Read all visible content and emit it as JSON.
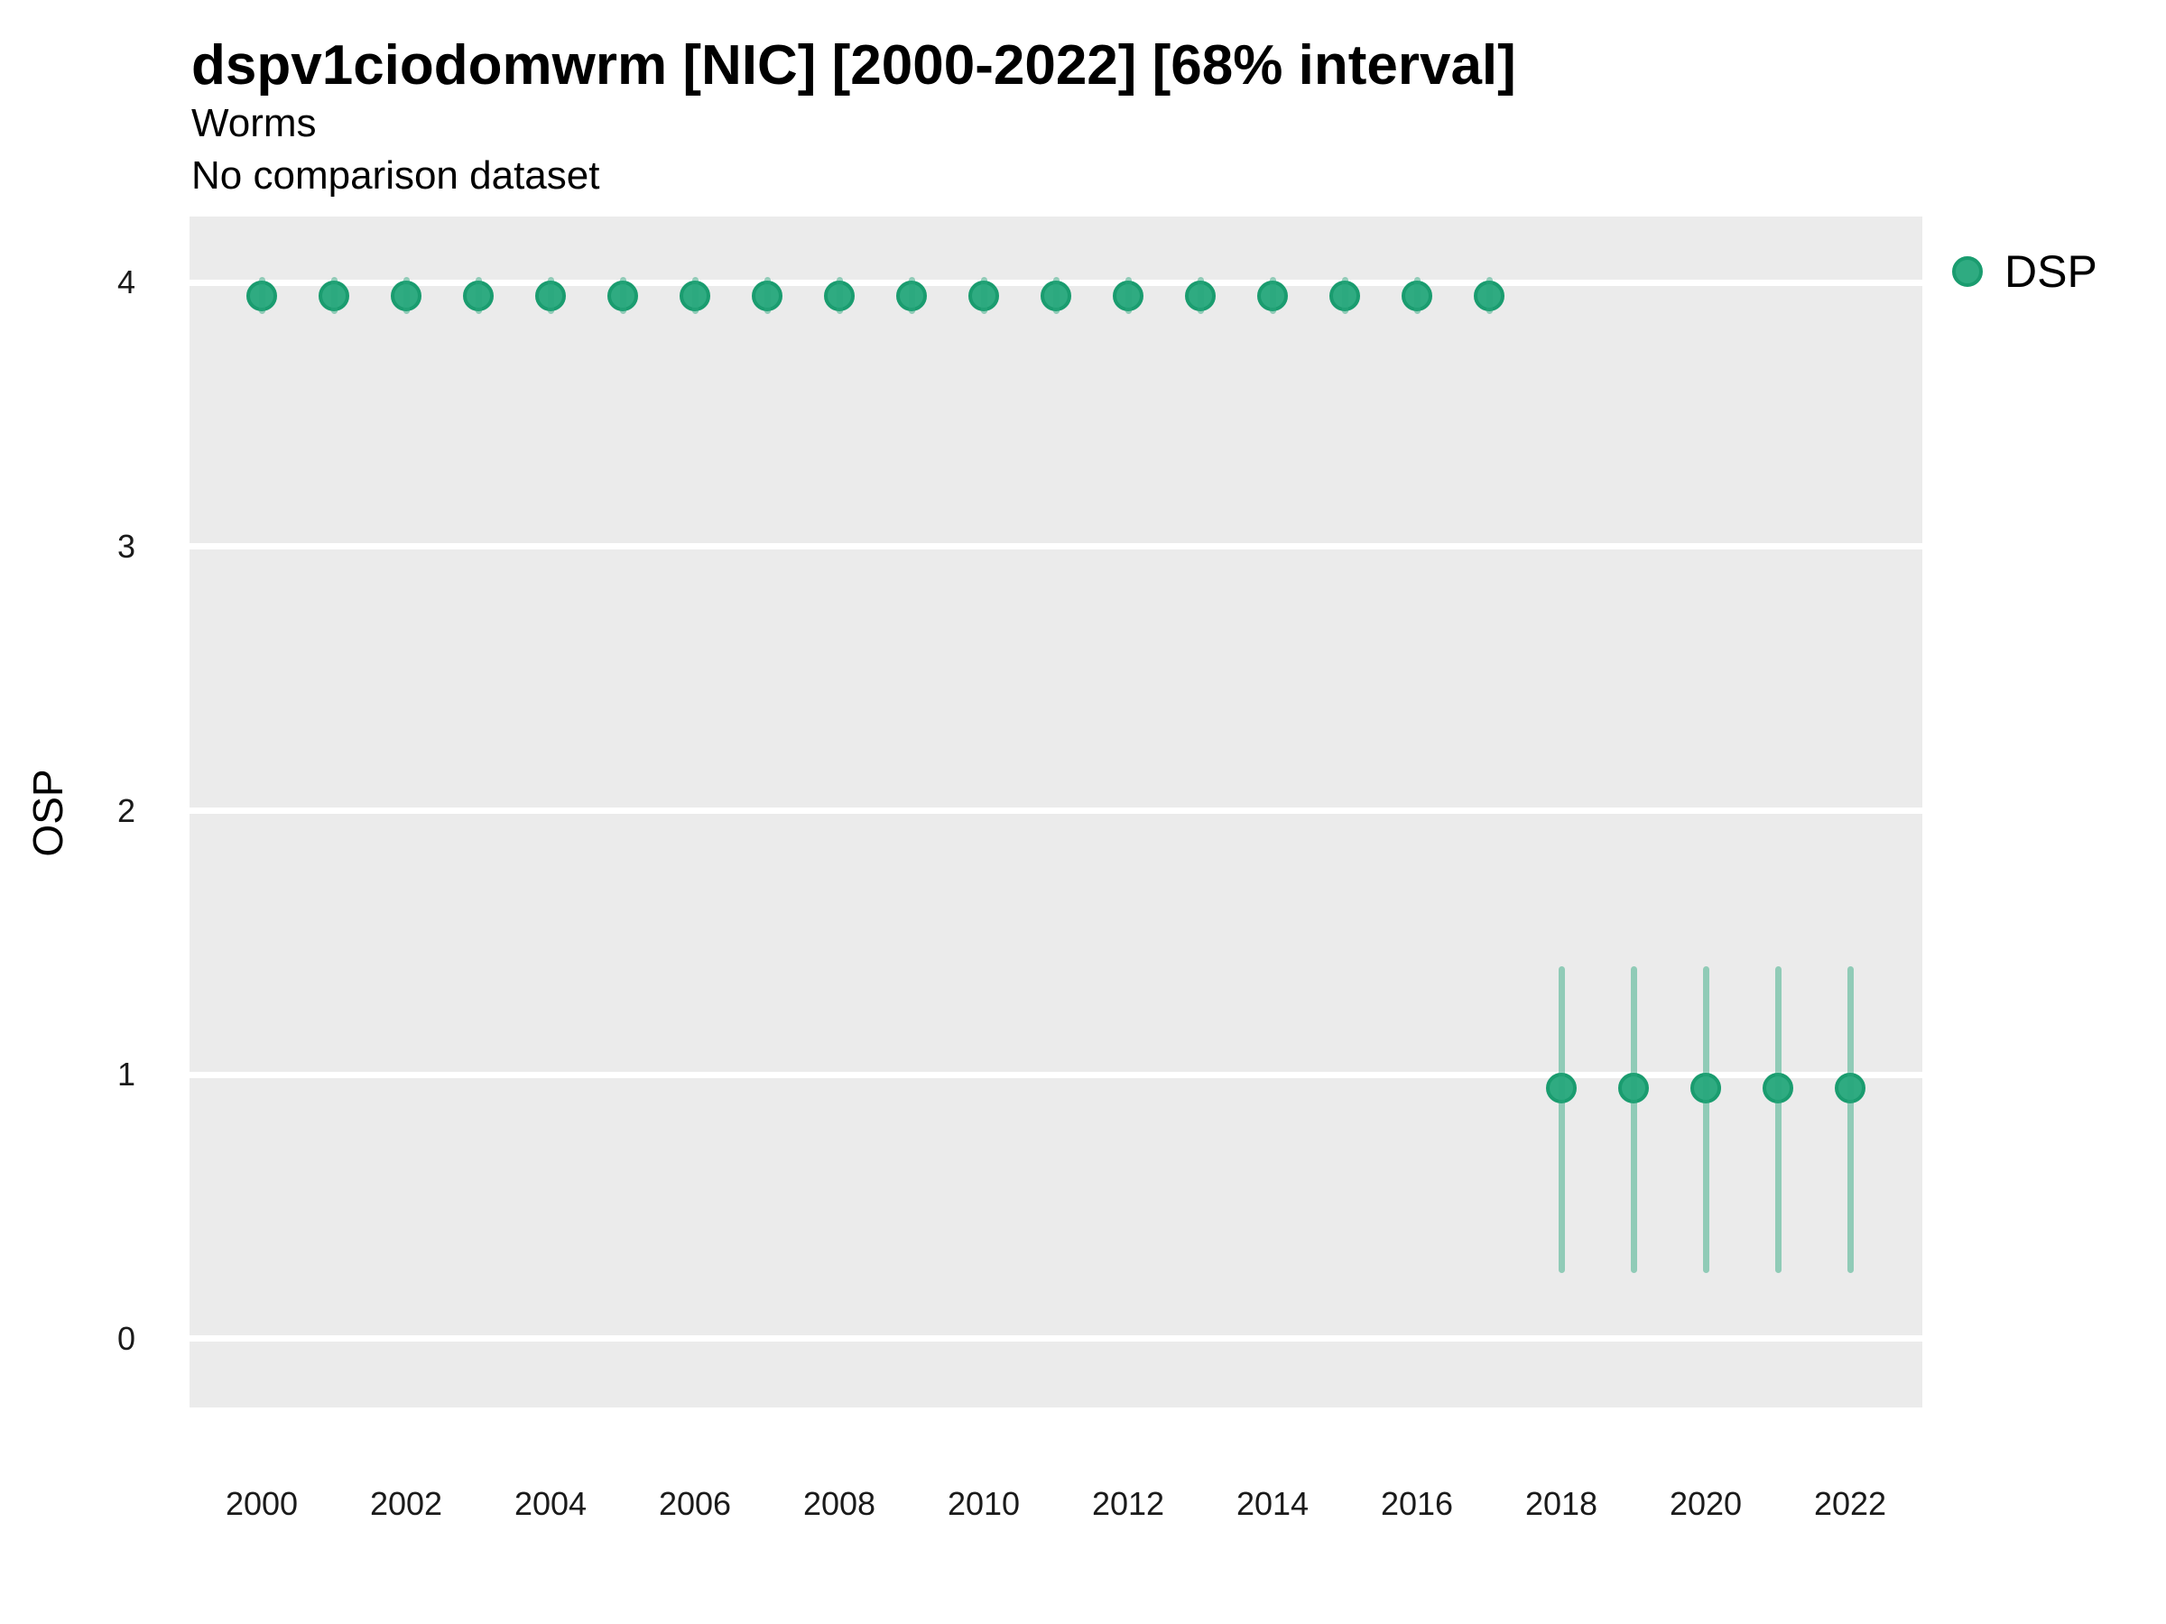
{
  "header": {
    "title": "dspv1ciodomwrm [NIC] [2000-2022] [68% interval]",
    "subtitle": "Worms",
    "note": "No comparison dataset"
  },
  "legend": {
    "label": "DSP",
    "position": "right-top"
  },
  "colors": {
    "point_fill": "#2fab81",
    "point_border": "#1a9c6f",
    "interval": "rgba(42,168,126,0.47)",
    "panel_bg": "#ebebeb",
    "gridline": "#ffffff",
    "tick_text": "#1a1a1a"
  },
  "chart_data": {
    "type": "scatter",
    "title": "dspv1ciodomwrm [NIC] [2000-2022] [68% interval]",
    "subtitle": "Worms",
    "note": "No comparison dataset",
    "xlabel": "",
    "ylabel": "OSP",
    "interval_level": "68%",
    "xlim": [
      1999,
      2023
    ],
    "ylim": [
      -0.26,
      4.25
    ],
    "x_tick_labels": [
      2000,
      2002,
      2004,
      2006,
      2008,
      2010,
      2012,
      2014,
      2016,
      2018,
      2020,
      2022
    ],
    "y_tick_labels": [
      0,
      1,
      2,
      3,
      4
    ],
    "grid": "major-horizontal-white-on-gray",
    "legend_position": "right-top",
    "series": [
      {
        "name": "DSP",
        "points": [
          {
            "year": 2000,
            "osp": 3.95,
            "lo": 3.88,
            "hi": 4.02
          },
          {
            "year": 2001,
            "osp": 3.95,
            "lo": 3.88,
            "hi": 4.02
          },
          {
            "year": 2002,
            "osp": 3.95,
            "lo": 3.88,
            "hi": 4.02
          },
          {
            "year": 2003,
            "osp": 3.95,
            "lo": 3.88,
            "hi": 4.02
          },
          {
            "year": 2004,
            "osp": 3.95,
            "lo": 3.88,
            "hi": 4.02
          },
          {
            "year": 2005,
            "osp": 3.95,
            "lo": 3.88,
            "hi": 4.02
          },
          {
            "year": 2006,
            "osp": 3.95,
            "lo": 3.88,
            "hi": 4.02
          },
          {
            "year": 2007,
            "osp": 3.95,
            "lo": 3.88,
            "hi": 4.02
          },
          {
            "year": 2008,
            "osp": 3.95,
            "lo": 3.88,
            "hi": 4.02
          },
          {
            "year": 2009,
            "osp": 3.95,
            "lo": 3.88,
            "hi": 4.02
          },
          {
            "year": 2010,
            "osp": 3.95,
            "lo": 3.88,
            "hi": 4.02
          },
          {
            "year": 2011,
            "osp": 3.95,
            "lo": 3.88,
            "hi": 4.02
          },
          {
            "year": 2012,
            "osp": 3.95,
            "lo": 3.88,
            "hi": 4.02
          },
          {
            "year": 2013,
            "osp": 3.95,
            "lo": 3.88,
            "hi": 4.02
          },
          {
            "year": 2014,
            "osp": 3.95,
            "lo": 3.88,
            "hi": 4.02
          },
          {
            "year": 2015,
            "osp": 3.95,
            "lo": 3.88,
            "hi": 4.02
          },
          {
            "year": 2016,
            "osp": 3.95,
            "lo": 3.88,
            "hi": 4.02
          },
          {
            "year": 2017,
            "osp": 3.95,
            "lo": 3.88,
            "hi": 4.02
          },
          {
            "year": 2018,
            "osp": 0.95,
            "lo": 0.25,
            "hi": 1.41
          },
          {
            "year": 2019,
            "osp": 0.95,
            "lo": 0.25,
            "hi": 1.41
          },
          {
            "year": 2020,
            "osp": 0.95,
            "lo": 0.25,
            "hi": 1.41
          },
          {
            "year": 2021,
            "osp": 0.95,
            "lo": 0.25,
            "hi": 1.41
          },
          {
            "year": 2022,
            "osp": 0.95,
            "lo": 0.25,
            "hi": 1.41
          }
        ]
      }
    ]
  }
}
